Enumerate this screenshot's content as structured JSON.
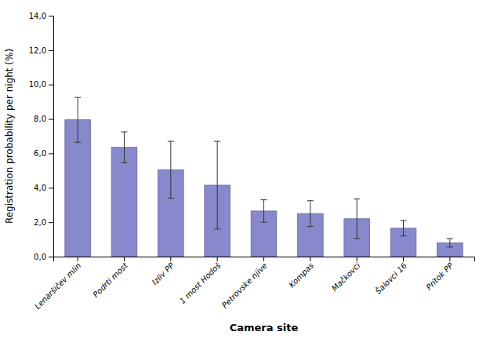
{
  "chart_data": {
    "type": "bar",
    "xlabel": "Camera site",
    "ylabel": "Registration probability per night (%)",
    "categories": [
      "Lenaršičev mlin",
      "Podrti most",
      "Izliv PP",
      "1 most Hodoš",
      "Petrovske njive",
      "Kompas",
      "Mačkovci",
      "Šalovci 16",
      "Pritok PP"
    ],
    "values": [
      7.95,
      6.35,
      5.05,
      4.15,
      2.65,
      2.5,
      2.2,
      1.65,
      0.8
    ],
    "errors": [
      1.3,
      0.9,
      1.65,
      2.55,
      0.65,
      0.75,
      1.15,
      0.45,
      0.25
    ],
    "color": "#8888CC",
    "ylim": [
      0.0,
      14.0
    ],
    "yticks": [
      {
        "value": 0.0,
        "label": "0,0"
      },
      {
        "value": 2.0,
        "label": "2,0"
      },
      {
        "value": 4.0,
        "label": "4,0"
      },
      {
        "value": 6.0,
        "label": "6,0"
      },
      {
        "value": 8.0,
        "label": "8,0"
      },
      {
        "value": 10.0,
        "label": "10,0"
      },
      {
        "value": 12.0,
        "label": "12,0"
      },
      {
        "value": 14.0,
        "label": "14,0"
      }
    ],
    "grid": false
  }
}
